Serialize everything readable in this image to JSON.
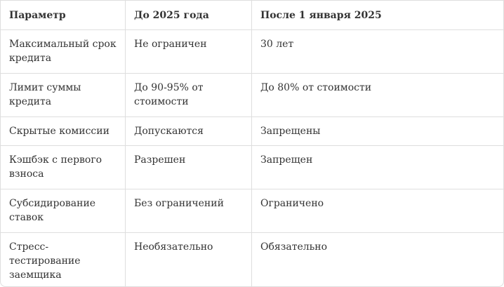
{
  "table": {
    "headers": [
      "Параметр",
      "До 2025 года",
      "После 1 января 2025"
    ],
    "rows": [
      [
        "Максимальный срок кредита",
        "Не ограничен",
        "30 лет"
      ],
      [
        "Лимит суммы кредита",
        "До 90-95% от стоимости",
        "До 80% от стоимости"
      ],
      [
        "Скрытые комиссии",
        "Допускаются",
        "Запрещены"
      ],
      [
        "Кэшбэк с первого взноса",
        "Разрешен",
        "Запрещен"
      ],
      [
        "Субсидирование ставок",
        "Без ограничений",
        "Ограничено"
      ],
      [
        "Стресс-тестирование заемщика",
        "Необязательно",
        "Обязательно"
      ]
    ]
  }
}
